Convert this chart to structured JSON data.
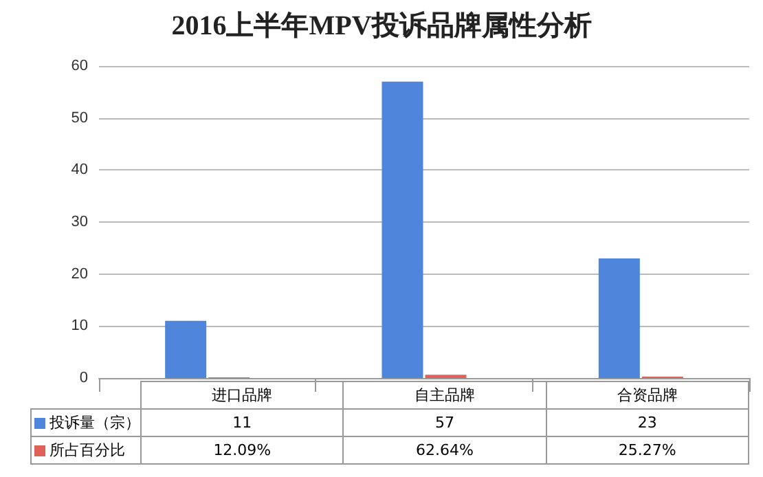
{
  "chart_data": {
    "type": "bar",
    "title": "2016上半年MPV投诉品牌属性分析",
    "categories": [
      "进口品牌",
      "自主品牌",
      "合资品牌"
    ],
    "series": [
      {
        "name": "投诉量（宗）",
        "color": "#4f86dc",
        "values": [
          11,
          57,
          23
        ],
        "value_labels": [
          "11",
          "57",
          "23"
        ]
      },
      {
        "name": "所占百分比",
        "color": "#e0605a",
        "values": [
          0.1209,
          0.6264,
          0.2527
        ],
        "value_labels": [
          "12.09%",
          "62.64%",
          "25.27%"
        ]
      }
    ],
    "ylim": [
      0,
      60
    ],
    "yticks": [
      0,
      10,
      20,
      30,
      40,
      50,
      60
    ],
    "grid": "y",
    "legend": "bottom"
  }
}
